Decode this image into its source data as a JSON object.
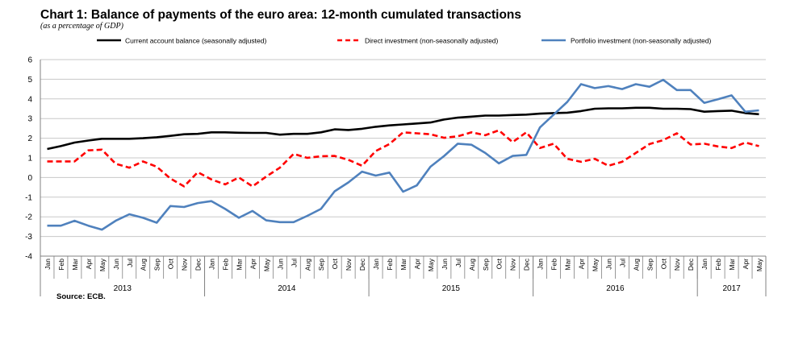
{
  "title": "Chart 1: Balance of payments of the euro area: 12-month cumulated transactions",
  "subtitle": "(as a percentage of GDP)",
  "source": "Source: ECB.",
  "chart_data": {
    "type": "line",
    "ylim": [
      -4,
      6
    ],
    "yticks": [
      "-4",
      "-3",
      "-2",
      "-1",
      "0",
      "1",
      "2",
      "3",
      "4",
      "5",
      "6"
    ],
    "grid": true,
    "legend_position": "top",
    "months": [
      "Jan",
      "Feb",
      "Mar",
      "Apr",
      "May",
      "Jun",
      "Jul",
      "Aug",
      "Sep",
      "Oct",
      "Nov",
      "Dec",
      "Jan",
      "Feb",
      "Mar",
      "Apr",
      "May",
      "Jun",
      "Jul",
      "Aug",
      "Sep",
      "Oct",
      "Nov",
      "Dec",
      "Jan",
      "Feb",
      "Mar",
      "Apr",
      "May",
      "Jun",
      "Jul",
      "Aug",
      "Sep",
      "Oct",
      "Nov",
      "Dec",
      "Jan",
      "Feb",
      "Mar",
      "Apr",
      "May",
      "Jun",
      "Jul",
      "Aug",
      "Sep",
      "Oct",
      "Nov",
      "Dec",
      "Jan",
      "Feb",
      "Mar",
      "Apr",
      "May"
    ],
    "years": [
      {
        "label": "2013",
        "months": 12
      },
      {
        "label": "2014",
        "months": 12
      },
      {
        "label": "2015",
        "months": 12
      },
      {
        "label": "2016",
        "months": 12
      },
      {
        "label": "2017",
        "months": 5
      }
    ],
    "series": [
      {
        "name": "Current account balance (seasonally adjusted)",
        "color": "#000000",
        "dash": "solid",
        "values": [
          1.45,
          1.6,
          1.78,
          1.88,
          1.97,
          1.97,
          1.97,
          2.0,
          2.05,
          2.12,
          2.2,
          2.22,
          2.3,
          2.3,
          2.28,
          2.27,
          2.27,
          2.18,
          2.22,
          2.22,
          2.3,
          2.45,
          2.42,
          2.48,
          2.58,
          2.65,
          2.7,
          2.75,
          2.8,
          2.95,
          3.05,
          3.1,
          3.15,
          3.15,
          3.18,
          3.2,
          3.25,
          3.28,
          3.3,
          3.38,
          3.5,
          3.52,
          3.52,
          3.55,
          3.55,
          3.5,
          3.5,
          3.48,
          3.35,
          3.38,
          3.4,
          3.28,
          3.22
        ]
      },
      {
        "name": "Direct investment (non-seasonally adjusted)",
        "color": "#ff0000",
        "dash": "dashed",
        "values": [
          0.82,
          0.82,
          0.82,
          1.38,
          1.42,
          0.7,
          0.5,
          0.82,
          0.55,
          -0.05,
          -0.45,
          0.27,
          -0.1,
          -0.35,
          0.0,
          -0.45,
          0.05,
          0.5,
          1.2,
          1.0,
          1.08,
          1.1,
          0.9,
          0.6,
          1.35,
          1.7,
          2.3,
          2.25,
          2.2,
          2.02,
          2.1,
          2.3,
          2.15,
          2.4,
          1.8,
          2.3,
          1.5,
          1.72,
          0.95,
          0.8,
          0.95,
          0.6,
          0.8,
          1.25,
          1.7,
          1.9,
          2.25,
          1.68,
          1.72,
          1.58,
          1.5,
          1.78,
          1.6
        ]
      },
      {
        "name": "Portfolio investment (non-seasonally adjusted)",
        "color": "#4f81bd",
        "dash": "solid",
        "values": [
          -2.45,
          -2.45,
          -2.2,
          -2.45,
          -2.65,
          -2.2,
          -1.87,
          -2.05,
          -2.3,
          -1.45,
          -1.5,
          -1.3,
          -1.2,
          -1.6,
          -2.05,
          -1.7,
          -2.18,
          -2.27,
          -2.27,
          -1.95,
          -1.6,
          -0.7,
          -0.25,
          0.3,
          0.1,
          0.25,
          -0.72,
          -0.4,
          0.55,
          1.1,
          1.72,
          1.67,
          1.25,
          0.72,
          1.1,
          1.15,
          2.55,
          3.2,
          3.85,
          4.75,
          4.55,
          4.65,
          4.5,
          4.75,
          4.62,
          4.97,
          4.45,
          4.45,
          3.8,
          3.98,
          4.18,
          3.35,
          3.42
        ]
      }
    ]
  }
}
